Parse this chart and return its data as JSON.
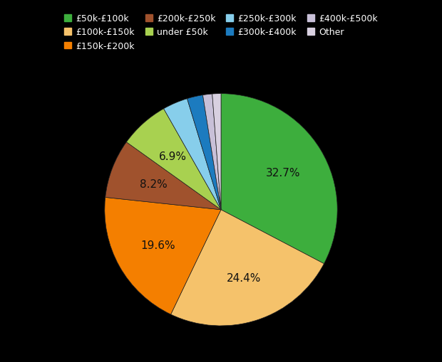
{
  "labels": [
    "£50k-£100k",
    "£100k-£150k",
    "£150k-£200k",
    "£200k-£250k",
    "under £50k",
    "£250k-£300k",
    "£300k-£400k",
    "£400k-£500k",
    "Other"
  ],
  "values": [
    32.7,
    24.4,
    19.6,
    8.2,
    6.9,
    3.5,
    2.2,
    1.3,
    1.2
  ],
  "colors": [
    "#3dae3d",
    "#f5c26b",
    "#f47f00",
    "#a0522d",
    "#a8d150",
    "#87ceeb",
    "#1c7bbf",
    "#c8c0d8",
    "#d8d0e0"
  ],
  "background_color": "#000000",
  "text_color": "#111111",
  "legend_row1": [
    "£50k-£100k",
    "£100k-£150k",
    "£150k-£200k",
    "£200k-£250k"
  ],
  "legend_row2": [
    "under £50k",
    "£250k-£300k",
    "£300k-£400k",
    "£400k-£500k",
    "Other"
  ],
  "pct_label_indices": [
    0,
    1,
    2,
    3,
    4
  ],
  "pct_labels": [
    "32.7%",
    "24.4%",
    "19.6%",
    "8.2%",
    "6.9%"
  ]
}
